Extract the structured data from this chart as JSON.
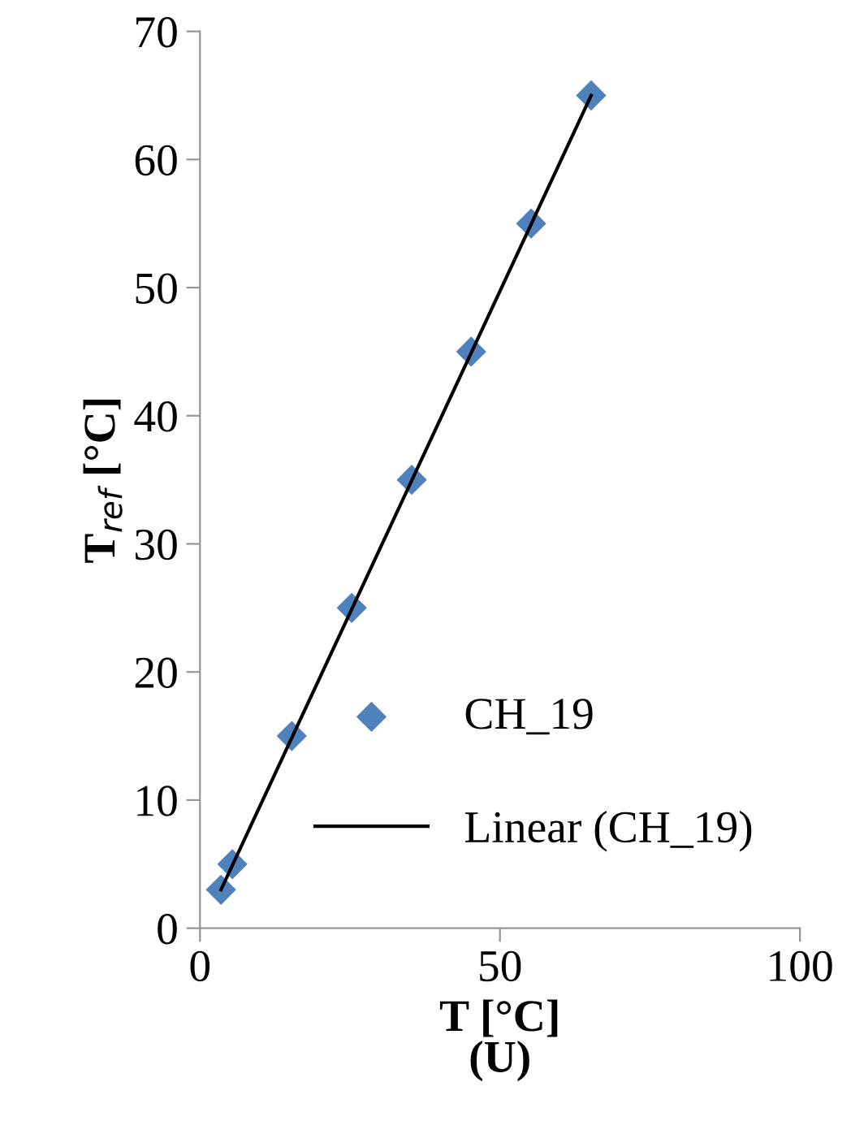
{
  "chart_data": {
    "type": "scatter",
    "xlabel": "T [°C]\n(U)",
    "ylabel": "T$_{ref}$ [°C]",
    "x": [
      3.5,
      5.4,
      15.3,
      25.3,
      35.3,
      45.2,
      55.2,
      65.2
    ],
    "series": [
      {
        "name": "CH_19",
        "color": "#4f81bd",
        "marker": "diamond",
        "values": [
          3,
          5,
          15,
          25,
          35,
          45,
          55,
          65
        ]
      },
      {
        "name": "Linear (CH_19)",
        "type": "line",
        "color": "#000000",
        "x": [
          3.5,
          65.2
        ],
        "values": [
          3.0,
          65.0
        ]
      }
    ],
    "xlim": [
      0,
      100
    ],
    "xticks": [
      0,
      50,
      100
    ],
    "ylim": [
      0,
      70
    ],
    "yticks": [
      0,
      10,
      20,
      30,
      40,
      50,
      60,
      70
    ],
    "grid": false,
    "legend": "bottom right"
  }
}
